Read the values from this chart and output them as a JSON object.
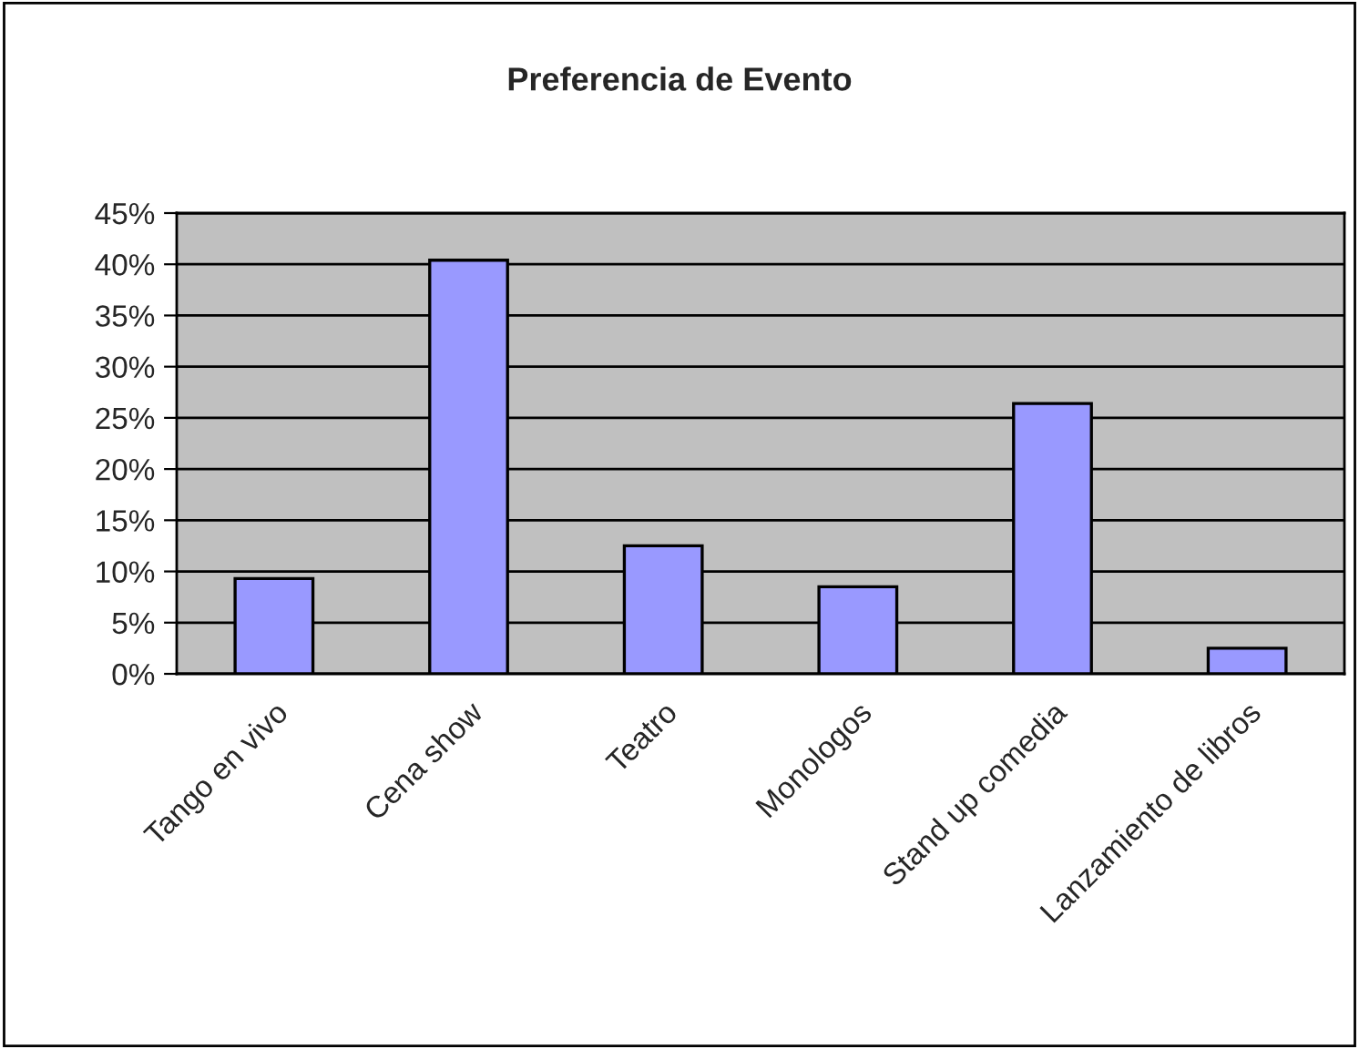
{
  "chart_data": {
    "type": "bar",
    "title": "Preferencia de Evento",
    "categories": [
      "Tango en vivo",
      "Cena show",
      "Teatro",
      "Monologos",
      "Stand up comedia",
      "Lanzamiento de libros"
    ],
    "values": [
      9.3,
      40.4,
      12.5,
      8.5,
      26.4,
      2.5
    ],
    "color": "#9999ff",
    "ylim": [
      0,
      45
    ],
    "yticks": [
      {
        "value": 0,
        "label": "0%"
      },
      {
        "value": 5,
        "label": "5%"
      },
      {
        "value": 10,
        "label": "10%"
      },
      {
        "value": 15,
        "label": "15%"
      },
      {
        "value": 20,
        "label": "20%"
      },
      {
        "value": 25,
        "label": "25%"
      },
      {
        "value": 30,
        "label": "30%"
      },
      {
        "value": 35,
        "label": "35%"
      },
      {
        "value": 40,
        "label": "40%"
      },
      {
        "value": 45,
        "label": "45%"
      }
    ],
    "grid": "y",
    "legend": false
  }
}
